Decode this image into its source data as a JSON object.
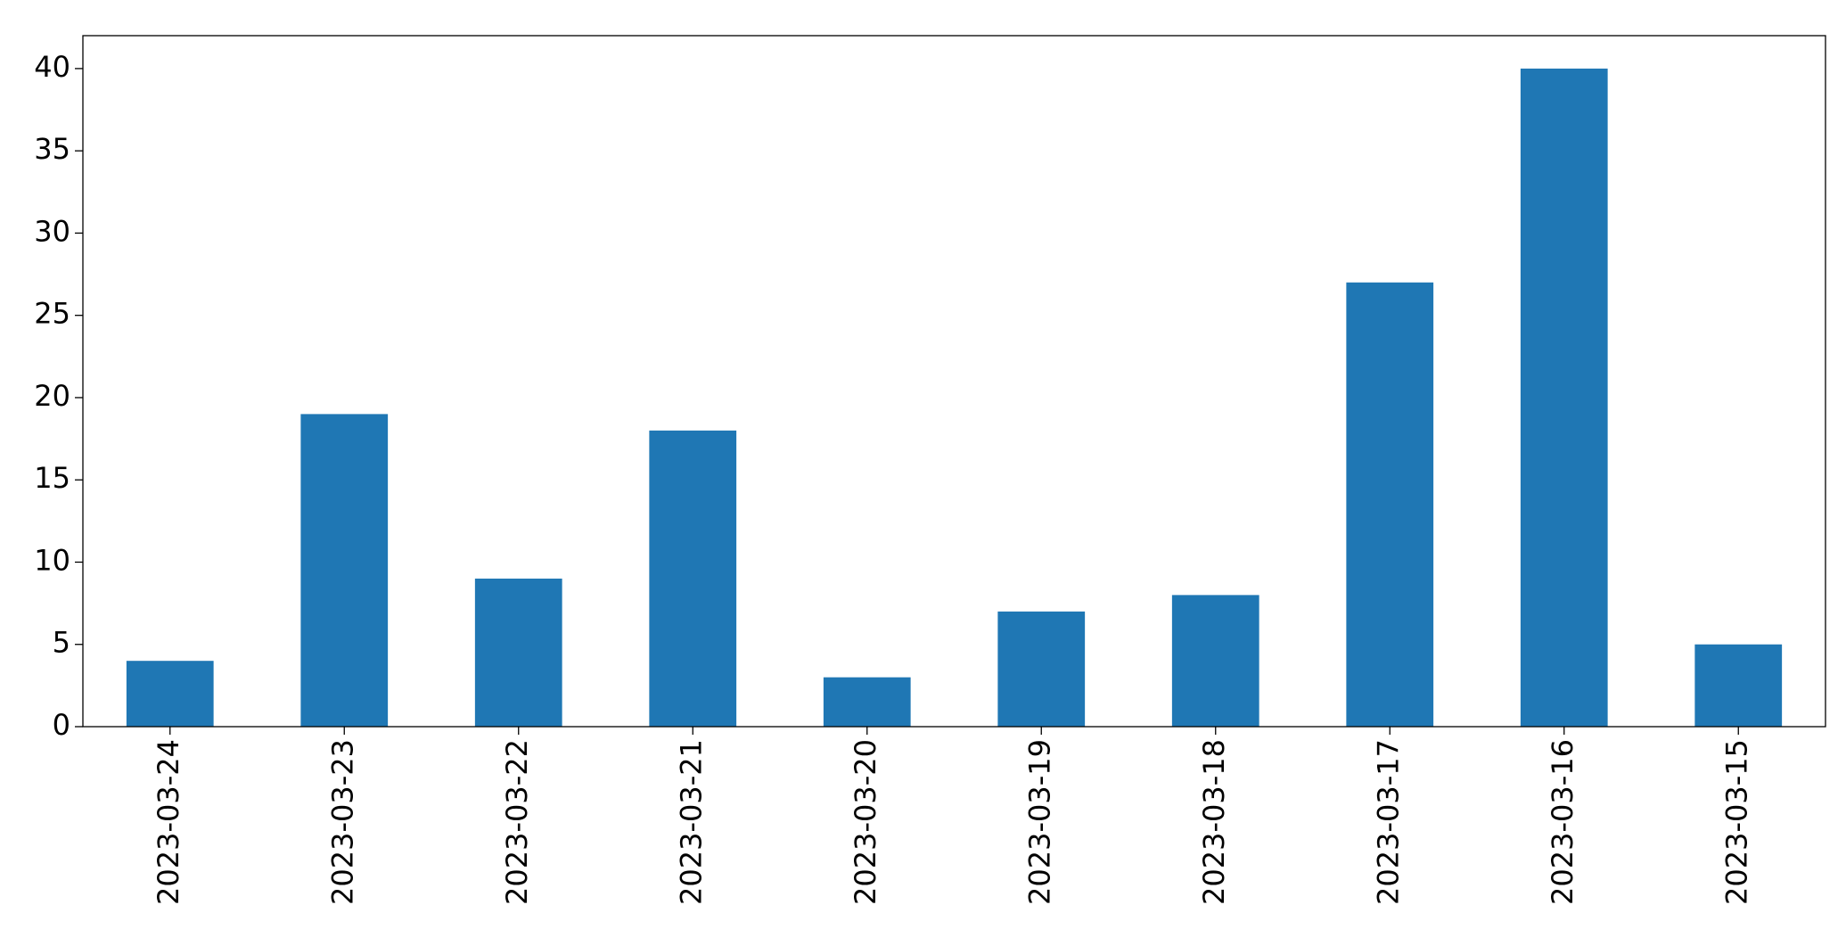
{
  "chart_data": {
    "type": "bar",
    "categories": [
      "2023-03-24",
      "2023-03-23",
      "2023-03-22",
      "2023-03-21",
      "2023-03-20",
      "2023-03-19",
      "2023-03-18",
      "2023-03-17",
      "2023-03-16",
      "2023-03-15"
    ],
    "values": [
      4,
      19,
      9,
      18,
      3,
      7,
      8,
      27,
      40,
      5
    ],
    "color": "#1f77b4",
    "ylim": [
      0,
      42
    ],
    "yticks": [
      0,
      5,
      10,
      15,
      20,
      25,
      30,
      35,
      40
    ],
    "grid": false
  }
}
